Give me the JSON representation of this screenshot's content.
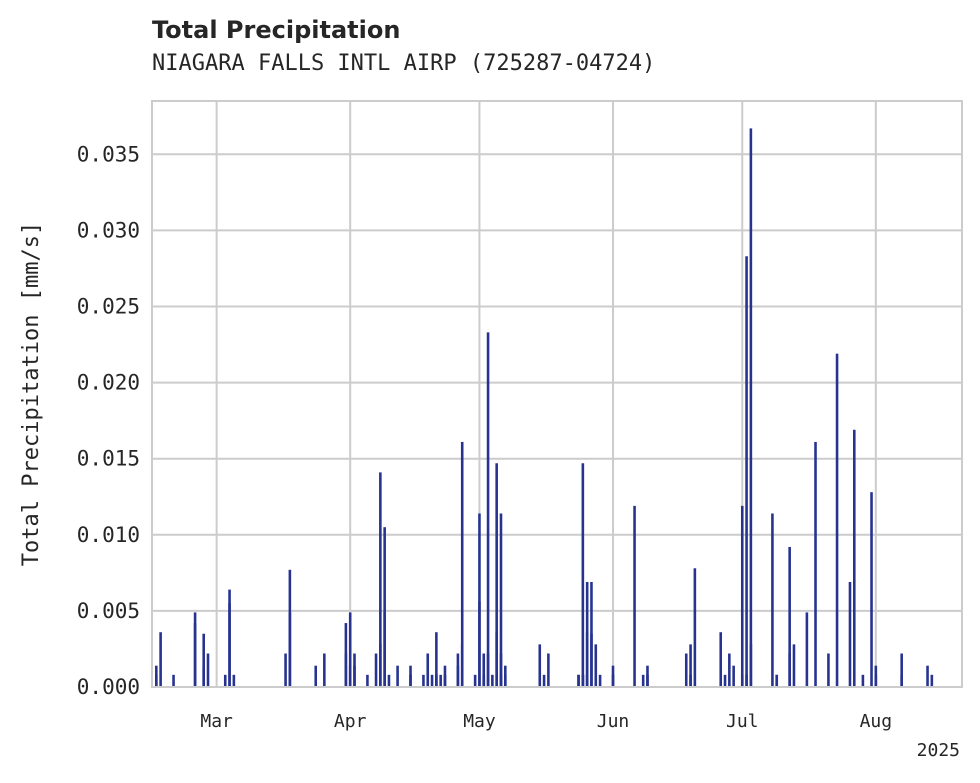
{
  "chart_data": {
    "type": "bar",
    "title": "Total Precipitation",
    "subtitle": "NIAGARA FALLS INTL AIRP (725287-04724)",
    "ylabel": "Total Precipitation [mm/s]",
    "xlabel": "",
    "x_range": [
      "2025-02-14",
      "2025-08-21"
    ],
    "ylim": [
      0,
      0.0385
    ],
    "yticks": [
      "0.000",
      "0.005",
      "0.010",
      "0.015",
      "0.020",
      "0.025",
      "0.030",
      "0.035"
    ],
    "xticks": [
      {
        "date": "2025-03-01",
        "label": "Mar"
      },
      {
        "date": "2025-04-01",
        "label": "Apr"
      },
      {
        "date": "2025-05-01",
        "label": "May"
      },
      {
        "date": "2025-06-01",
        "label": "Jun"
      },
      {
        "date": "2025-07-01",
        "label": "Jul"
      },
      {
        "date": "2025-08-01",
        "label": "Aug"
      }
    ],
    "year_label": "2025",
    "grid": true,
    "bar_color": "#27338f",
    "series": [
      {
        "x": [
          "2025-02-15",
          "2025-02-15",
          "2025-02-16",
          "2025-02-19",
          "2025-02-24",
          "2025-02-24",
          "2025-02-26",
          "2025-02-26",
          "2025-02-27",
          "2025-03-03",
          "2025-03-04",
          "2025-03-04",
          "2025-03-05",
          "2025-03-17",
          "2025-03-18",
          "2025-03-18",
          "2025-03-24",
          "2025-03-26",
          "2025-03-31",
          "2025-03-31",
          "2025-04-01",
          "2025-04-01",
          "2025-04-02",
          "2025-04-02",
          "2025-04-05",
          "2025-04-07",
          "2025-04-08",
          "2025-04-08",
          "2025-04-09",
          "2025-04-09",
          "2025-04-10",
          "2025-04-12",
          "2025-04-15",
          "2025-04-15",
          "2025-04-18",
          "2025-04-19",
          "2025-04-20",
          "2025-04-21",
          "2025-04-21",
          "2025-04-22",
          "2025-04-23",
          "2025-04-23",
          "2025-04-26",
          "2025-04-26",
          "2025-04-27",
          "2025-04-27",
          "2025-04-30",
          "2025-05-01",
          "2025-05-01",
          "2025-05-02",
          "2025-05-02",
          "2025-05-02",
          "2025-05-03",
          "2025-05-03",
          "2025-05-04",
          "2025-05-05",
          "2025-05-05",
          "2025-05-06",
          "2025-05-06",
          "2025-05-06",
          "2025-05-07",
          "2025-05-07",
          "2025-05-15",
          "2025-05-16",
          "2025-05-17",
          "2025-05-24",
          "2025-05-24",
          "2025-05-25",
          "2025-05-25",
          "2025-05-25",
          "2025-05-26",
          "2025-05-26",
          "2025-05-26",
          "2025-05-27",
          "2025-05-27",
          "2025-05-28",
          "2025-05-29",
          "2025-06-01",
          "2025-06-01",
          "2025-06-06",
          "2025-06-08",
          "2025-06-09",
          "2025-06-09",
          "2025-06-18",
          "2025-06-19",
          "2025-06-19",
          "2025-06-20",
          "2025-06-26",
          "2025-06-27",
          "2025-06-28",
          "2025-06-29",
          "2025-07-01",
          "2025-07-01",
          "2025-07-02",
          "2025-07-02",
          "2025-07-03",
          "2025-07-03",
          "2025-07-08",
          "2025-07-09",
          "2025-07-09",
          "2025-07-12",
          "2025-07-12",
          "2025-07-13",
          "2025-07-16",
          "2025-07-18",
          "2025-07-21",
          "2025-07-23",
          "2025-07-26",
          "2025-07-27",
          "2025-07-29",
          "2025-07-31",
          "2025-08-01",
          "2025-08-01",
          "2025-08-07",
          "2025-08-07",
          "2025-08-13",
          "2025-08-14"
        ],
        "values": [
          0.0008,
          0.0014,
          0.0036,
          0.0008,
          0.0049,
          0.0042,
          0.0035,
          0.0013,
          0.0022,
          0.0008,
          0.0064,
          0.0055,
          0.0008,
          0.0022,
          0.0077,
          0.0049,
          0.0014,
          0.0022,
          0.0042,
          0.0022,
          0.0049,
          0.0014,
          0.0022,
          0.0014,
          0.0008,
          0.0022,
          0.0141,
          0.0028,
          0.0105,
          0.0049,
          0.0008,
          0.0014,
          0.0014,
          0.0008,
          0.0008,
          0.0022,
          0.0008,
          0.0036,
          0.0008,
          0.0008,
          0.0014,
          0.0008,
          0.0014,
          0.0022,
          0.0028,
          0.0161,
          0.0008,
          0.0056,
          0.0114,
          0.0022,
          0.0008,
          0.0008,
          0.0233,
          0.0022,
          0.0008,
          0.0036,
          0.0147,
          0.0114,
          0.0022,
          0.0008,
          0.0014,
          0.0008,
          0.0028,
          0.0008,
          0.0022,
          0.0008,
          0.0008,
          0.0008,
          0.0147,
          0.0008,
          0.0069,
          0.0036,
          0.0008,
          0.0069,
          0.0035,
          0.0028,
          0.0008,
          0.0014,
          0.0008,
          0.0119,
          0.0008,
          0.0014,
          0.0008,
          0.0022,
          0.0008,
          0.0028,
          0.0078,
          0.0036,
          0.0008,
          0.0022,
          0.0014,
          0.0008,
          0.0119,
          0.0283,
          0.0008,
          0.0028,
          0.0367,
          0.0114,
          0.0008,
          0.0008,
          0.0022,
          0.0092,
          0.0028,
          0.0049,
          0.0161,
          0.0022,
          0.0219,
          0.0069,
          0.0169,
          0.0008,
          0.0128,
          0.0014,
          0.0008,
          0.0022,
          0.0008,
          0.0014,
          0.0008
        ]
      }
    ]
  }
}
